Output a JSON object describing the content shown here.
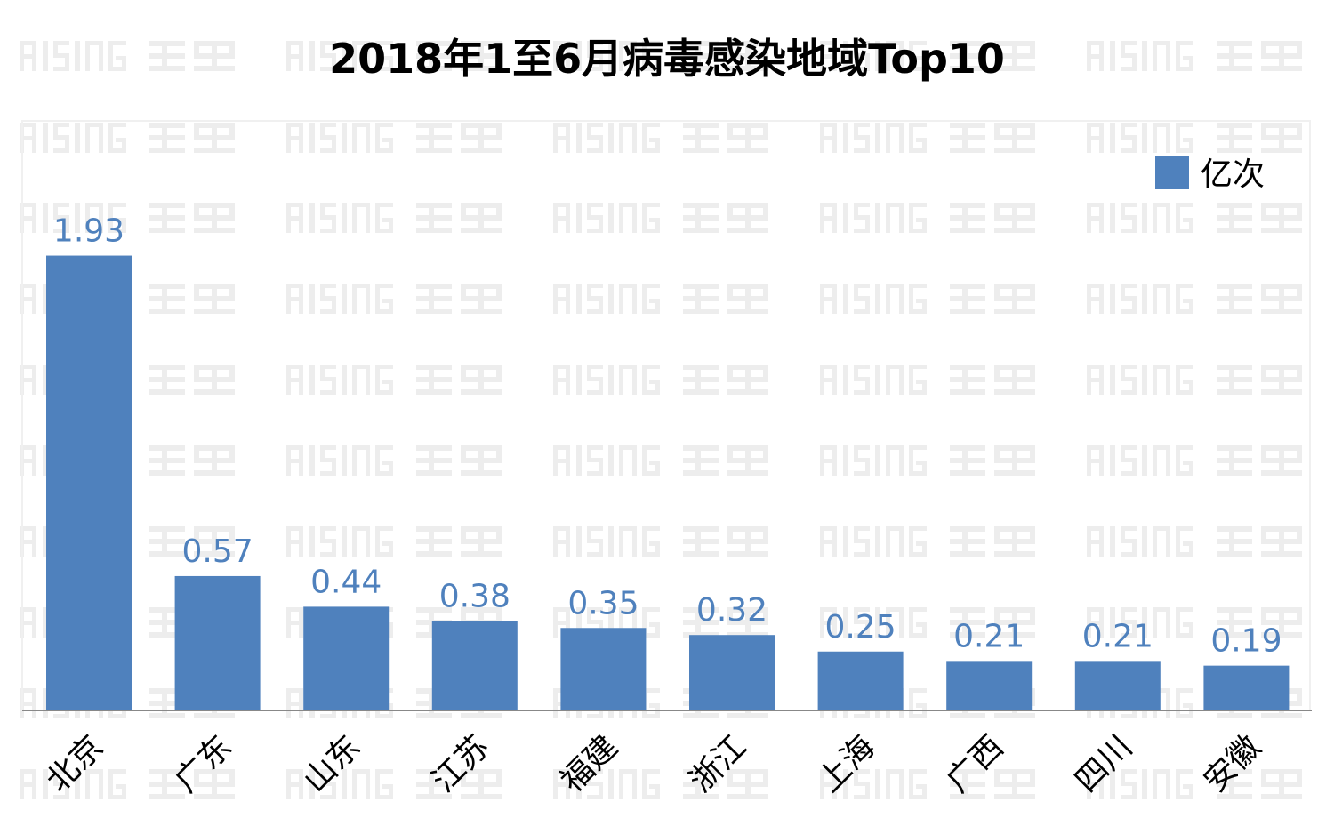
{
  "watermark": "RISING 瑞星",
  "chart_data": {
    "type": "bar",
    "title": "2018年1至6月病毒感染地域Top10",
    "categories": [
      "北京",
      "广东",
      "山东",
      "江苏",
      "福建",
      "浙江",
      "上海",
      "广西",
      "四川",
      "安徽"
    ],
    "series": [
      {
        "name": "亿次",
        "values": [
          1.93,
          0.57,
          0.44,
          0.38,
          0.35,
          0.32,
          0.25,
          0.21,
          0.21,
          0.19
        ],
        "color": "#4F81BD"
      }
    ],
    "data_labels": [
      "1.93",
      "0.57",
      "0.44",
      "0.38",
      "0.35",
      "0.32",
      "0.25",
      "0.21",
      "0.21",
      "0.19"
    ],
    "xlabel": "",
    "ylabel": "",
    "ylim": [
      0,
      2.5
    ],
    "grid": false,
    "legend": "top-right",
    "x_tick_rotation": -45
  }
}
